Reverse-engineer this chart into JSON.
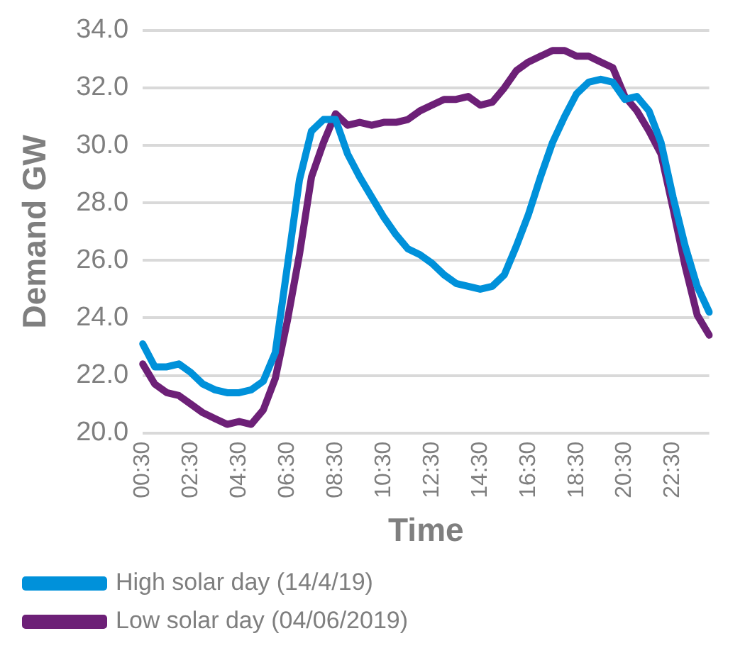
{
  "chart_data": {
    "type": "line",
    "xlabel": "Time",
    "ylabel": "Demand GW",
    "categories": [
      "00:30",
      null,
      null,
      null,
      "02:30",
      null,
      null,
      null,
      "04:30",
      null,
      null,
      null,
      "06:30",
      null,
      null,
      null,
      "08:30",
      null,
      null,
      null,
      "10:30",
      null,
      null,
      null,
      "12:30",
      null,
      null,
      null,
      "14:30",
      null,
      null,
      null,
      "16:30",
      null,
      null,
      null,
      "18:30",
      null,
      null,
      null,
      "20:30",
      null,
      null,
      null,
      "22:30",
      null,
      null,
      null
    ],
    "series": [
      {
        "name": "High solar day (14/4/19)",
        "color": "#0091da",
        "values": [
          23.1,
          22.3,
          22.3,
          22.4,
          22.1,
          21.7,
          21.5,
          21.4,
          21.4,
          21.5,
          21.8,
          22.8,
          25.8,
          28.8,
          30.5,
          30.9,
          30.9,
          29.7,
          28.9,
          28.2,
          27.5,
          26.9,
          26.4,
          26.2,
          25.9,
          25.5,
          25.2,
          25.1,
          25.0,
          25.1,
          25.5,
          26.5,
          27.6,
          28.9,
          30.1,
          31.0,
          31.8,
          32.2,
          32.3,
          32.2,
          31.6,
          31.7,
          31.2,
          30.1,
          28.2,
          26.5,
          25.1,
          24.2
        ]
      },
      {
        "name": "Low solar day (04/06/2019)",
        "color": "#6d2077",
        "values": [
          22.4,
          21.7,
          21.4,
          21.3,
          21.0,
          20.7,
          20.5,
          20.3,
          20.4,
          20.3,
          20.8,
          21.9,
          23.9,
          26.2,
          28.9,
          30.1,
          31.1,
          30.7,
          30.8,
          30.7,
          30.8,
          30.8,
          30.9,
          31.2,
          31.4,
          31.6,
          31.6,
          31.7,
          31.4,
          31.5,
          32.0,
          32.6,
          32.9,
          33.1,
          33.3,
          33.3,
          33.1,
          33.1,
          32.9,
          32.7,
          31.7,
          31.2,
          30.5,
          29.7,
          27.8,
          25.8,
          24.1,
          23.4
        ]
      }
    ],
    "ylim": [
      20,
      34
    ],
    "yticks": [
      {
        "value": 20,
        "label": "20.0"
      },
      {
        "value": 22,
        "label": "22.0"
      },
      {
        "value": 24,
        "label": "24.0"
      },
      {
        "value": 26,
        "label": "26.0"
      },
      {
        "value": 28,
        "label": "28.0"
      },
      {
        "value": 30,
        "label": "30.0"
      },
      {
        "value": 32,
        "label": "32.0"
      },
      {
        "value": 34,
        "label": "34.0"
      }
    ],
    "grid": "y",
    "legend": "bottom",
    "marker": "none",
    "line_style": "solid"
  }
}
